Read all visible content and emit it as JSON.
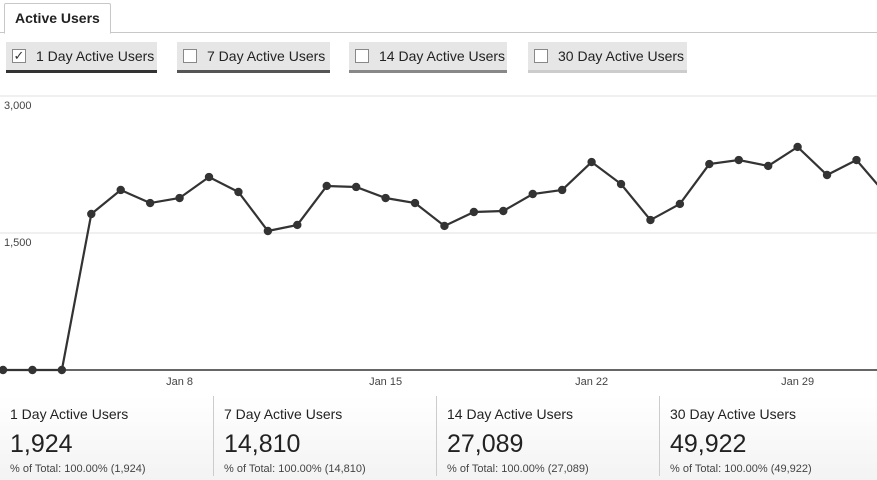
{
  "tab": {
    "label": "Active Users"
  },
  "metrics": [
    {
      "label": "1 Day Active Users",
      "checked": true,
      "color": "#333333"
    },
    {
      "label": "7 Day Active Users",
      "checked": false,
      "color": "#555555"
    },
    {
      "label": "14 Day Active Users",
      "checked": false,
      "color": "#888888"
    },
    {
      "label": "30 Day Active Users",
      "checked": false,
      "color": "#cccccc"
    }
  ],
  "summary": [
    {
      "label": "1 Day Active Users",
      "value": "1,924",
      "pct": "% of Total: 100.00% (1,924)"
    },
    {
      "label": "7 Day Active Users",
      "value": "14,810",
      "pct": "% of Total: 100.00% (14,810)"
    },
    {
      "label": "14 Day Active Users",
      "value": "27,089",
      "pct": "% of Total: 100.00% (27,089)"
    },
    {
      "label": "30 Day Active Users",
      "value": "49,922",
      "pct": "% of Total: 100.00% (49,922)"
    }
  ],
  "chart_data": {
    "type": "line",
    "series": [
      {
        "name": "1 Day Active Users",
        "color": "#333333",
        "values": [
          0,
          0,
          0,
          1708,
          1971,
          1828,
          1883,
          2113,
          1949,
          1522,
          1588,
          2015,
          2004,
          1883,
          1828,
          1577,
          1730,
          1741,
          1927,
          1971,
          2277,
          2036,
          1642,
          1818,
          2255,
          2299,
          2234,
          2442,
          2135,
          2299,
          1924
        ]
      }
    ],
    "x": [
      "Jan 2",
      "Jan 3",
      "Jan 4",
      "Jan 5",
      "Jan 6",
      "Jan 7",
      "Jan 8",
      "Jan 9",
      "Jan 10",
      "Jan 11",
      "Jan 12",
      "Jan 13",
      "Jan 14",
      "Jan 15",
      "Jan 16",
      "Jan 17",
      "Jan 18",
      "Jan 19",
      "Jan 20",
      "Jan 21",
      "Jan 22",
      "Jan 23",
      "Jan 24",
      "Jan 25",
      "Jan 26",
      "Jan 27",
      "Jan 28",
      "Jan 29",
      "Jan 30",
      "Jan 31",
      "Feb 1"
    ],
    "xticks": [
      {
        "index": 6,
        "label": "Jan 8"
      },
      {
        "index": 13,
        "label": "Jan 15"
      },
      {
        "index": 20,
        "label": "Jan 22"
      },
      {
        "index": 27,
        "label": "Jan 29"
      }
    ],
    "yticks": [
      {
        "value": 3000,
        "label": "3,000"
      },
      {
        "value": 1500,
        "label": "1,500"
      }
    ],
    "ylim": [
      0,
      3000
    ],
    "grid": true
  }
}
